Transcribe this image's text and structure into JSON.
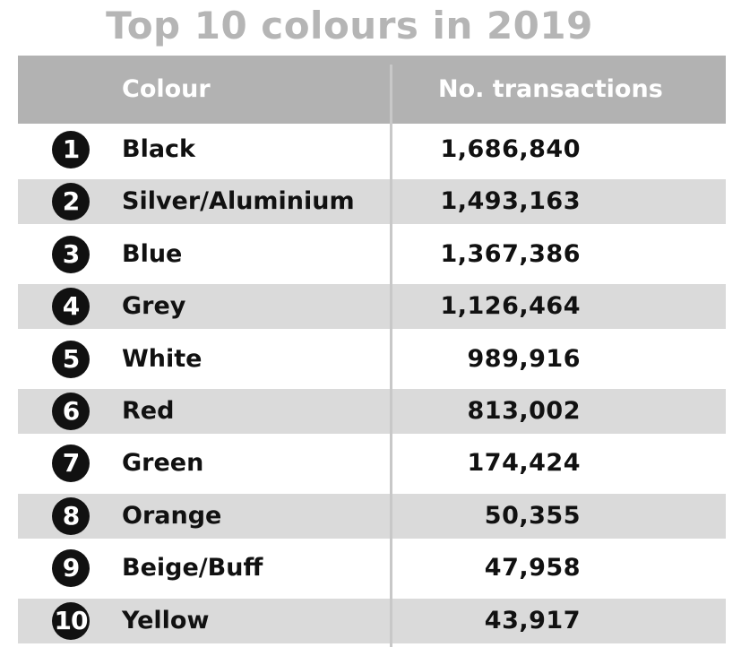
{
  "chart_data": {
    "type": "table",
    "title": "Top 10 colours in 2019",
    "columns": [
      "Colour",
      "No. transactions"
    ],
    "rows": [
      {
        "rank": "1",
        "colour": "Black",
        "transactions": "1,686,840",
        "value": 1686840
      },
      {
        "rank": "2",
        "colour": "Silver/Aluminium",
        "transactions": "1,493,163",
        "value": 1493163
      },
      {
        "rank": "3",
        "colour": "Blue",
        "transactions": "1,367,386",
        "value": 1367386
      },
      {
        "rank": "4",
        "colour": "Grey",
        "transactions": "1,126,464",
        "value": 1126464
      },
      {
        "rank": "5",
        "colour": "White",
        "transactions": "989,916",
        "value": 989916
      },
      {
        "rank": "6",
        "colour": "Red",
        "transactions": "813,002",
        "value": 813002
      },
      {
        "rank": "7",
        "colour": "Green",
        "transactions": "174,424",
        "value": 174424
      },
      {
        "rank": "8",
        "colour": "Orange",
        "transactions": "50,355",
        "value": 50355
      },
      {
        "rank": "9",
        "colour": "Beige/Buff",
        "transactions": "47,958",
        "value": 47958
      },
      {
        "rank": "10",
        "colour": "Yellow",
        "transactions": "43,917",
        "value": 43917
      }
    ]
  },
  "colors": {
    "title": "#b5b5b5",
    "header_bg": "#b2b2b2",
    "header_text": "#ffffff",
    "row_alt_bg": "#dadada",
    "badge_bg": "#111111"
  }
}
